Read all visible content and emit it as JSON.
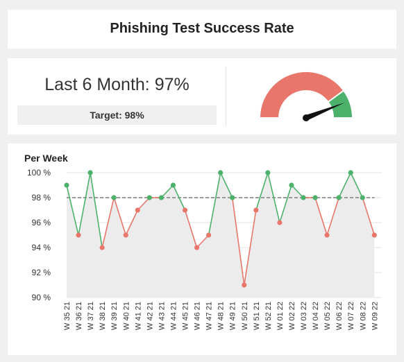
{
  "header": {
    "title": "Phishing Test Success Rate"
  },
  "kpi": {
    "label": "Last 6 Month: 97%",
    "value": 97,
    "target_label": "Target: 98%",
    "target": 98
  },
  "gauge": {
    "value_fraction": 0.88,
    "zones": [
      {
        "from": 0,
        "to": 0.8,
        "color": "#e8766b"
      },
      {
        "from": 0.8,
        "to": 1.0,
        "color": "#4cb26b"
      }
    ]
  },
  "colors": {
    "above_target": "#4cb26b",
    "below_target": "#e8766b",
    "target_line": "#999999",
    "area_fill": "#ececec",
    "needle": "#111111"
  },
  "chart_data": {
    "type": "line",
    "title": "Per Week",
    "xlabel": "",
    "ylabel": "",
    "ylim": [
      90,
      100
    ],
    "yticks": [
      90,
      92,
      94,
      96,
      98,
      100
    ],
    "ytick_labels": [
      "90 %",
      "92 %",
      "94 %",
      "96 %",
      "98 %",
      "100 %"
    ],
    "target": 98,
    "grid": true,
    "categories": [
      "W 35 21",
      "W 36 21",
      "W 37 21",
      "W 38 21",
      "W 39 21",
      "W 40 21",
      "W 41 21",
      "W 42 21",
      "W 43 21",
      "W 44 21",
      "W 45 21",
      "W 46 21",
      "W 47 21",
      "W 48 21",
      "W 49 21",
      "W 50 21",
      "W 51 21",
      "W 52 21",
      "W 01 22",
      "W 02 22",
      "W 03 22",
      "W 04 22",
      "W 05 22",
      "W 06 22",
      "W 07 22",
      "W 08 22",
      "W 09 22"
    ],
    "values": [
      99,
      95,
      100,
      94,
      98,
      95,
      97,
      98,
      98,
      99,
      97,
      94,
      95,
      100,
      98,
      91,
      97,
      100,
      96,
      99,
      98,
      98,
      95,
      98,
      100,
      98,
      95
    ]
  }
}
